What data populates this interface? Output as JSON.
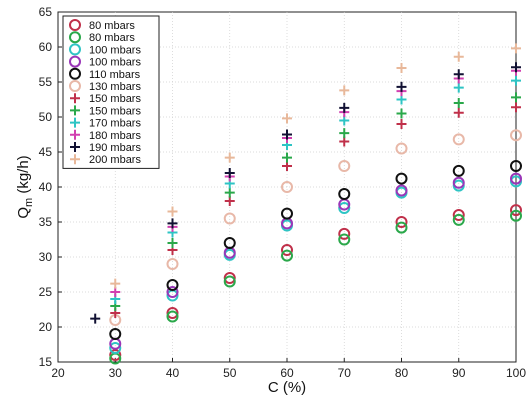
{
  "chart_data": {
    "type": "scatter",
    "xlabel": "C (%)",
    "ylabel_main": "Q",
    "ylabel_sub": "m",
    "ylabel_unit": " (kg/h)",
    "xlim": [
      20,
      100
    ],
    "ylim": [
      15,
      65
    ],
    "xticks": [
      20,
      30,
      40,
      50,
      60,
      70,
      80,
      90,
      100
    ],
    "yticks": [
      15,
      20,
      25,
      30,
      35,
      40,
      45,
      50,
      55,
      60,
      65
    ],
    "grid": true,
    "legend_position": "top-left",
    "series": [
      {
        "name": "80 mbars",
        "marker": "circle",
        "color": "#c0304a",
        "x": [
          30,
          40,
          50,
          60,
          70,
          80,
          90,
          100
        ],
        "y": [
          16.0,
          22.0,
          27.0,
          31.0,
          33.3,
          35.0,
          36.0,
          36.7
        ]
      },
      {
        "name": "80 mbars",
        "marker": "circle",
        "color": "#2aa84a",
        "x": [
          30,
          40,
          50,
          60,
          70,
          80,
          90,
          100
        ],
        "y": [
          15.5,
          21.5,
          26.5,
          30.2,
          32.5,
          34.2,
          35.3,
          35.9
        ]
      },
      {
        "name": "100 mbars",
        "marker": "circle",
        "color": "#2ec4c4",
        "x": [
          30,
          40,
          50,
          60,
          70,
          80,
          90,
          100
        ],
        "y": [
          17.0,
          24.5,
          30.3,
          34.5,
          37.0,
          39.2,
          40.2,
          40.8
        ]
      },
      {
        "name": "100 mbars",
        "marker": "circle",
        "color": "#9a36b8",
        "x": [
          30,
          40,
          50,
          60,
          70,
          80,
          90,
          100
        ],
        "y": [
          17.6,
          25.0,
          30.6,
          34.8,
          37.5,
          39.5,
          40.6,
          41.2
        ]
      },
      {
        "name": "110 mbars",
        "marker": "circle",
        "color": "#111111",
        "x": [
          30,
          40,
          50,
          60,
          70,
          80,
          90,
          100
        ],
        "y": [
          19.0,
          26.0,
          32.0,
          36.2,
          39.0,
          41.2,
          42.3,
          43.0
        ]
      },
      {
        "name": "130 mbars",
        "marker": "circle",
        "color": "#e8b8a8",
        "x": [
          30,
          40,
          50,
          60,
          70,
          80,
          90,
          100
        ],
        "y": [
          21.0,
          29.0,
          35.5,
          40.0,
          43.0,
          45.5,
          46.8,
          47.4
        ]
      },
      {
        "name": "150 mbars",
        "marker": "plus",
        "color": "#c0304a",
        "x": [
          30,
          40,
          50,
          60,
          70,
          80,
          90,
          100
        ],
        "y": [
          22.0,
          31.0,
          38.0,
          43.0,
          46.5,
          49.0,
          50.6,
          51.4
        ]
      },
      {
        "name": "150 mbars",
        "marker": "plus",
        "color": "#2aa84a",
        "x": [
          30,
          40,
          50,
          60,
          70,
          80,
          90,
          100
        ],
        "y": [
          23.0,
          32.0,
          39.2,
          44.2,
          47.7,
          50.5,
          52.0,
          52.8
        ]
      },
      {
        "name": "170 mbars",
        "marker": "plus",
        "color": "#2ec4c4",
        "x": [
          30,
          40,
          50,
          60,
          70,
          80,
          90,
          100
        ],
        "y": [
          24.0,
          33.5,
          40.5,
          46.0,
          49.5,
          52.5,
          54.2,
          55.2
        ]
      },
      {
        "name": "180 mbars",
        "marker": "plus",
        "color": "#d23fb0",
        "x": [
          30,
          40,
          50,
          60,
          70,
          80,
          90,
          100
        ],
        "y": [
          25.0,
          34.3,
          41.5,
          47.0,
          50.7,
          53.7,
          55.5,
          56.6
        ]
      },
      {
        "name": "190 mbars",
        "marker": "plus",
        "color": "#111133",
        "x": [
          26.5,
          40,
          50,
          60,
          70,
          80,
          90,
          100
        ],
        "y": [
          21.2,
          34.8,
          42.0,
          47.5,
          51.3,
          54.3,
          56.1,
          57.1
        ]
      },
      {
        "name": "200 mbars",
        "marker": "plus",
        "color": "#e8b89a",
        "x": [
          30,
          40,
          50,
          60,
          70,
          80,
          90,
          100
        ],
        "y": [
          26.2,
          36.5,
          44.2,
          49.8,
          53.8,
          57.0,
          58.6,
          59.8
        ]
      }
    ]
  }
}
